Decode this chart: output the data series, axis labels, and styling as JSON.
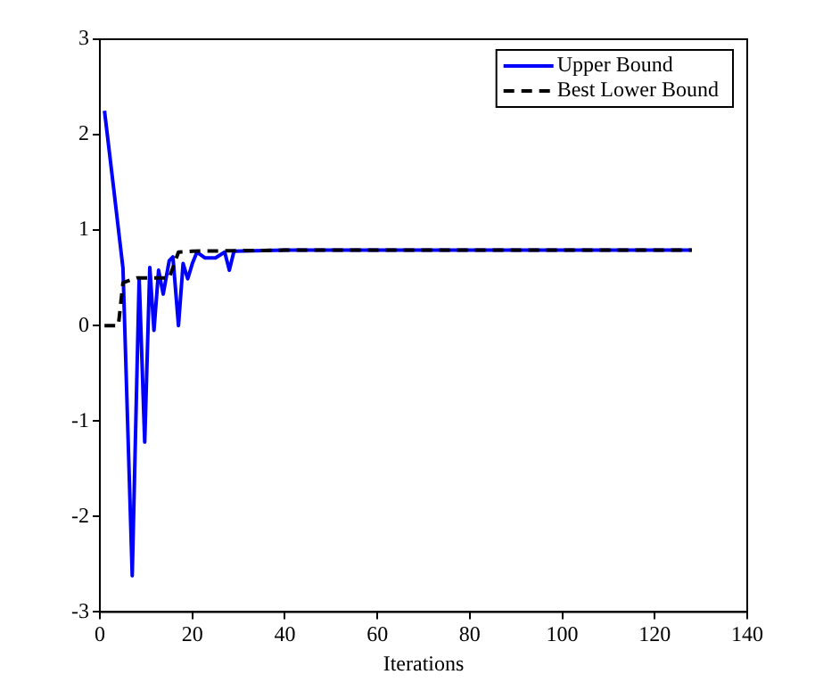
{
  "chart_data": {
    "type": "line",
    "xlabel": "Iterations",
    "xlim": [
      0,
      140
    ],
    "xticks": [
      0,
      20,
      40,
      60,
      80,
      100,
      120,
      140
    ],
    "ylim": [
      -3,
      3
    ],
    "yticks": [
      -3,
      -2,
      -1,
      0,
      1,
      2,
      3
    ],
    "grid": false,
    "legend": "top right",
    "marker": "none",
    "series": [
      {
        "name": "Upper Bound",
        "color": "#0000ff",
        "line_style": "solid",
        "x": [
          1,
          3,
          5,
          7,
          8.5,
          9.7,
          10.8,
          11.7,
          12.7,
          13.7,
          15,
          15.8,
          17,
          18,
          19,
          20,
          21,
          22.7,
          25,
          27,
          28,
          29,
          40,
          60,
          80,
          100,
          128
        ],
        "values": [
          2.25,
          1.43,
          0.6,
          -2.62,
          0.5,
          -1.22,
          0.61,
          -0.05,
          0.58,
          0.33,
          0.68,
          0.72,
          0,
          0.65,
          0.49,
          0.65,
          0.77,
          0.71,
          0.71,
          0.77,
          0.58,
          0.78,
          0.79,
          0.79,
          0.79,
          0.79,
          0.79
        ]
      },
      {
        "name": "Best Lower Bound",
        "color": "#000000",
        "line_style": "dashed",
        "x": [
          1,
          4,
          5,
          8,
          15,
          17,
          20,
          40,
          60,
          80,
          100,
          128
        ],
        "values": [
          0,
          0,
          0.45,
          0.5,
          0.5,
          0.77,
          0.78,
          0.79,
          0.79,
          0.79,
          0.79,
          0.79
        ]
      }
    ]
  }
}
